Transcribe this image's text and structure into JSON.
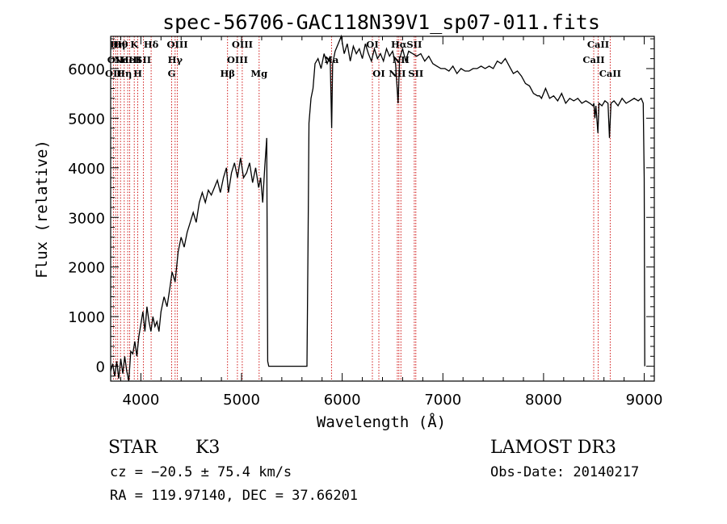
{
  "chart_data": {
    "type": "line",
    "title": "spec-56706-GAC118N39V1_sp07-011.fits",
    "xlabel": "Wavelength (Å)",
    "ylabel": "Flux (relative)",
    "xlim": [
      3700,
      9100
    ],
    "ylim": [
      -300,
      6650
    ],
    "x_ticks": [
      4000,
      5000,
      6000,
      7000,
      8000,
      9000
    ],
    "y_ticks": [
      0,
      1000,
      2000,
      3000,
      4000,
      5000,
      6000
    ],
    "grid": false,
    "spectrum_color": "#000000",
    "line_marker_color": "#cc0000",
    "spectrum": [
      [
        3700,
        -100
      ],
      [
        3720,
        50
      ],
      [
        3740,
        -200
      ],
      [
        3760,
        100
      ],
      [
        3780,
        -250
      ],
      [
        3800,
        150
      ],
      [
        3820,
        -150
      ],
      [
        3840,
        200
      ],
      [
        3860,
        -100
      ],
      [
        3880,
        -300
      ],
      [
        3900,
        300
      ],
      [
        3920,
        250
      ],
      [
        3940,
        500
      ],
      [
        3960,
        200
      ],
      [
        3980,
        600
      ],
      [
        4000,
        850
      ],
      [
        4020,
        1100
      ],
      [
        4040,
        700
      ],
      [
        4060,
        1200
      ],
      [
        4080,
        900
      ],
      [
        4100,
        700
      ],
      [
        4120,
        1000
      ],
      [
        4140,
        800
      ],
      [
        4160,
        900
      ],
      [
        4180,
        700
      ],
      [
        4200,
        1100
      ],
      [
        4230,
        1400
      ],
      [
        4260,
        1200
      ],
      [
        4290,
        1600
      ],
      [
        4310,
        1900
      ],
      [
        4340,
        1700
      ],
      [
        4370,
        2300
      ],
      [
        4400,
        2600
      ],
      [
        4430,
        2400
      ],
      [
        4460,
        2700
      ],
      [
        4490,
        2900
      ],
      [
        4520,
        3100
      ],
      [
        4550,
        2900
      ],
      [
        4580,
        3300
      ],
      [
        4610,
        3500
      ],
      [
        4640,
        3300
      ],
      [
        4670,
        3550
      ],
      [
        4700,
        3450
      ],
      [
        4730,
        3600
      ],
      [
        4760,
        3750
      ],
      [
        4790,
        3500
      ],
      [
        4820,
        3800
      ],
      [
        4850,
        4000
      ],
      [
        4870,
        3500
      ],
      [
        4900,
        3900
      ],
      [
        4930,
        4100
      ],
      [
        4960,
        3800
      ],
      [
        4990,
        4200
      ],
      [
        5020,
        3800
      ],
      [
        5050,
        3900
      ],
      [
        5080,
        4100
      ],
      [
        5110,
        3700
      ],
      [
        5140,
        4000
      ],
      [
        5170,
        3600
      ],
      [
        5190,
        3800
      ],
      [
        5210,
        3300
      ],
      [
        5230,
        4000
      ],
      [
        5250,
        4600
      ],
      [
        5260,
        100
      ],
      [
        5270,
        0
      ],
      [
        5650,
        0
      ],
      [
        5660,
        2400
      ],
      [
        5670,
        4900
      ],
      [
        5690,
        5400
      ],
      [
        5710,
        5600
      ],
      [
        5730,
        6100
      ],
      [
        5760,
        6200
      ],
      [
        5790,
        6000
      ],
      [
        5820,
        6300
      ],
      [
        5850,
        6100
      ],
      [
        5880,
        6250
      ],
      [
        5895,
        4800
      ],
      [
        5905,
        6100
      ],
      [
        5930,
        6350
      ],
      [
        5960,
        6500
      ],
      [
        5990,
        6700
      ],
      [
        6020,
        6300
      ],
      [
        6050,
        6500
      ],
      [
        6080,
        6150
      ],
      [
        6110,
        6450
      ],
      [
        6140,
        6300
      ],
      [
        6170,
        6400
      ],
      [
        6200,
        6200
      ],
      [
        6230,
        6500
      ],
      [
        6260,
        6300
      ],
      [
        6290,
        6150
      ],
      [
        6320,
        6400
      ],
      [
        6350,
        6200
      ],
      [
        6380,
        6300
      ],
      [
        6410,
        6150
      ],
      [
        6440,
        6400
      ],
      [
        6470,
        6250
      ],
      [
        6500,
        6350
      ],
      [
        6530,
        6100
      ],
      [
        6555,
        5300
      ],
      [
        6570,
        6200
      ],
      [
        6600,
        6400
      ],
      [
        6630,
        6150
      ],
      [
        6660,
        6350
      ],
      [
        6700,
        6300
      ],
      [
        6740,
        6250
      ],
      [
        6780,
        6300
      ],
      [
        6820,
        6150
      ],
      [
        6860,
        6250
      ],
      [
        6900,
        6100
      ],
      [
        6940,
        6050
      ],
      [
        6980,
        6000
      ],
      [
        7020,
        6000
      ],
      [
        7060,
        5950
      ],
      [
        7100,
        6050
      ],
      [
        7140,
        5900
      ],
      [
        7180,
        6000
      ],
      [
        7220,
        5950
      ],
      [
        7260,
        5950
      ],
      [
        7300,
        6000
      ],
      [
        7340,
        6000
      ],
      [
        7380,
        6050
      ],
      [
        7420,
        6000
      ],
      [
        7460,
        6050
      ],
      [
        7500,
        6000
      ],
      [
        7540,
        6150
      ],
      [
        7580,
        6100
      ],
      [
        7620,
        6200
      ],
      [
        7660,
        6050
      ],
      [
        7700,
        5900
      ],
      [
        7740,
        5950
      ],
      [
        7780,
        5850
      ],
      [
        7820,
        5700
      ],
      [
        7860,
        5650
      ],
      [
        7900,
        5500
      ],
      [
        7940,
        5450
      ],
      [
        7960,
        5450
      ],
      [
        7980,
        5400
      ],
      [
        8020,
        5600
      ],
      [
        8060,
        5400
      ],
      [
        8100,
        5450
      ],
      [
        8140,
        5350
      ],
      [
        8180,
        5500
      ],
      [
        8220,
        5300
      ],
      [
        8260,
        5400
      ],
      [
        8300,
        5350
      ],
      [
        8340,
        5400
      ],
      [
        8380,
        5300
      ],
      [
        8420,
        5350
      ],
      [
        8460,
        5300
      ],
      [
        8490,
        5250
      ],
      [
        8500,
        5300
      ],
      [
        8510,
        5000
      ],
      [
        8520,
        5250
      ],
      [
        8540,
        4700
      ],
      [
        8550,
        5300
      ],
      [
        8580,
        5250
      ],
      [
        8610,
        5350
      ],
      [
        8640,
        5300
      ],
      [
        8655,
        4600
      ],
      [
        8670,
        5300
      ],
      [
        8700,
        5350
      ],
      [
        8740,
        5250
      ],
      [
        8780,
        5400
      ],
      [
        8820,
        5300
      ],
      [
        8860,
        5350
      ],
      [
        8900,
        5400
      ],
      [
        8940,
        5350
      ],
      [
        8970,
        5400
      ],
      [
        8990,
        5300
      ],
      [
        9000,
        3800
      ],
      [
        9005,
        0
      ]
    ],
    "spectral_lines": [
      {
        "wavelength": 3727,
        "label": "OII",
        "row": 2
      },
      {
        "wavelength": 3750,
        "label": "OII",
        "row": 1
      },
      {
        "wavelength": 3770,
        "label": "Hη",
        "row": 0
      },
      {
        "wavelength": 3798,
        "label": "Hθ",
        "row": 0
      },
      {
        "wavelength": 3835,
        "label": "Hη",
        "row": 2
      },
      {
        "wavelength": 3869,
        "label": "NeIII",
        "row": 1
      },
      {
        "wavelength": 3889,
        "label": "HeI",
        "row": 1
      },
      {
        "wavelength": 3934,
        "label": "K",
        "row": 0
      },
      {
        "wavelength": 3969,
        "label": "H",
        "row": 2
      },
      {
        "wavelength": 4026,
        "label": "SII",
        "row": 1
      },
      {
        "wavelength": 4102,
        "label": "Hδ",
        "row": 0
      },
      {
        "wavelength": 4306,
        "label": "G",
        "row": 2
      },
      {
        "wavelength": 4340,
        "label": "Hγ",
        "row": 1
      },
      {
        "wavelength": 4363,
        "label": "OIII",
        "row": 0
      },
      {
        "wavelength": 4861,
        "label": "Hβ",
        "row": 2
      },
      {
        "wavelength": 4959,
        "label": "OIII",
        "row": 1
      },
      {
        "wavelength": 5007,
        "label": "OIII",
        "row": 0
      },
      {
        "wavelength": 5175,
        "label": "Mg",
        "row": 2
      },
      {
        "wavelength": 5894,
        "label": "Na",
        "row": 1
      },
      {
        "wavelength": 6300,
        "label": "OI",
        "row": 0
      },
      {
        "wavelength": 6364,
        "label": "OI",
        "row": 2
      },
      {
        "wavelength": 6548,
        "label": "NII",
        "row": 2
      },
      {
        "wavelength": 6563,
        "label": "Hα",
        "row": 0
      },
      {
        "wavelength": 6583,
        "label": "NII",
        "row": 1
      },
      {
        "wavelength": 6716,
        "label": "SII",
        "row": 0
      },
      {
        "wavelength": 6731,
        "label": "SII",
        "row": 2
      },
      {
        "wavelength": 8498,
        "label": "CaII",
        "row": 1
      },
      {
        "wavelength": 8542,
        "label": "CaII",
        "row": 0
      },
      {
        "wavelength": 8662,
        "label": "CaII",
        "row": 2
      }
    ]
  },
  "info": {
    "class_label": "STAR",
    "subclass": "K3",
    "survey": "LAMOST DR3",
    "cz": "cz = −20.5 ± 75.4 km/s",
    "obs_date": "Obs-Date: 20140217",
    "coords": "RA = 119.97140, DEC =  37.66201"
  }
}
